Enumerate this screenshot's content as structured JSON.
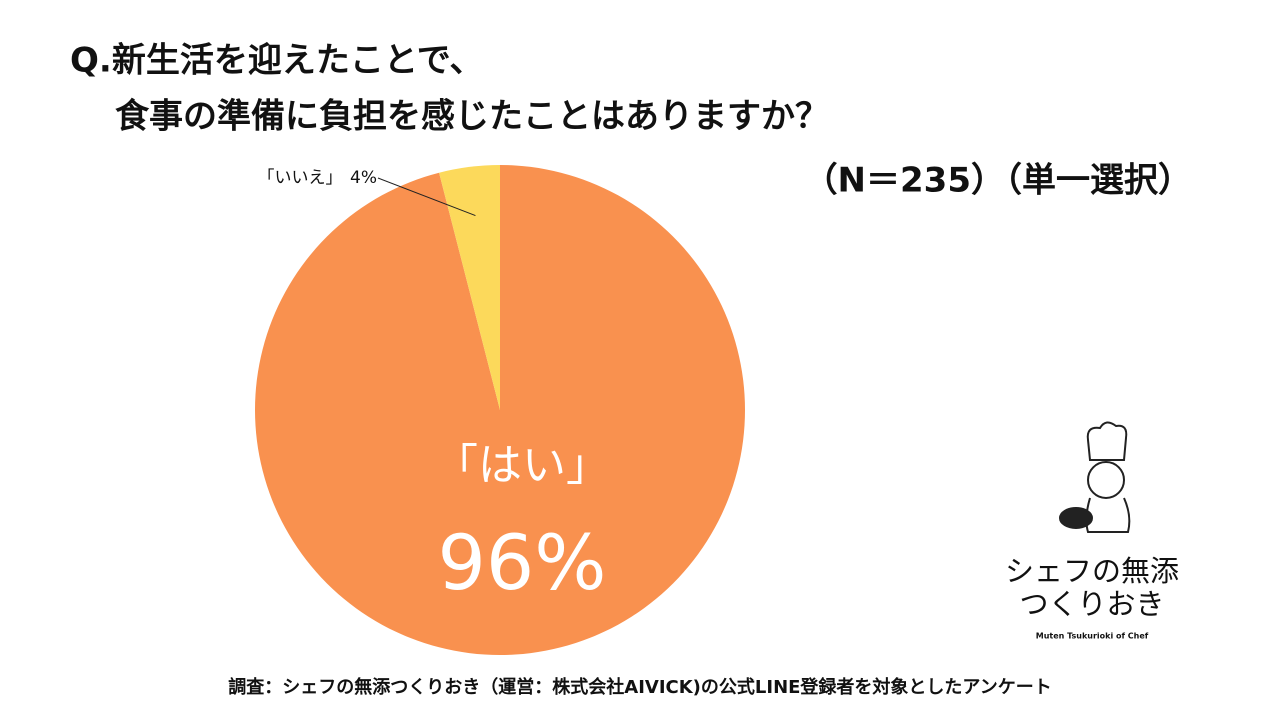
{
  "chart_data": {
    "type": "pie",
    "title": [
      "Q.新生活を迎えたことで、",
      "食事の準備に負担を感じたことはありますか？"
    ],
    "subtitle": "（N＝235）（単一選択）",
    "categories": [
      "「はい」",
      "「いいえ」"
    ],
    "values": [
      96,
      4
    ],
    "value_labels": [
      "96%",
      "4%"
    ],
    "colors": [
      "#F9914F",
      "#FCD95B"
    ],
    "note": "調査：シェフの無添つくりおき（運営：株式会社AIVICK)の公式LINE登録者を対象としたアンケート"
  },
  "logo": {
    "line1": "シェフの無添",
    "line2": "つくりおき",
    "tagline": "Muten Tsukurioki of Chef"
  }
}
